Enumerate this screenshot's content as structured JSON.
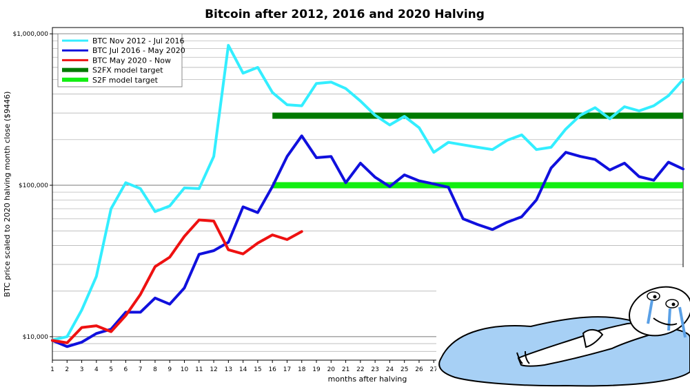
{
  "chart_data": {
    "type": "line",
    "title": "Bitcoin after 2012, 2016 and 2020 Halving",
    "xlabel": "months after halving",
    "ylabel": "BTC price scaled to 2020 halving month close ($9446)",
    "yscale": "log",
    "ylim": [
      7000,
      1100000
    ],
    "xlim": [
      1,
      44
    ],
    "y_ticks": [
      {
        "value": 10000,
        "label": "$10,000"
      },
      {
        "value": 100000,
        "label": "$100,000"
      },
      {
        "value": 1000000,
        "label": "$1,000,000"
      }
    ],
    "x_ticks": [
      "1",
      "2",
      "3",
      "4",
      "5",
      "6",
      "7",
      "8",
      "9",
      "10",
      "11",
      "12",
      "13",
      "14",
      "15",
      "16",
      "17",
      "18",
      "19",
      "20",
      "21",
      "22",
      "23",
      "24",
      "25",
      "26",
      "27"
    ],
    "grid": true,
    "legend_position": "top-left",
    "series": [
      {
        "name": "BTC Nov 2012 - Jul 2016",
        "color": "#33eeff",
        "x": [
          1,
          2,
          3,
          4,
          5,
          6,
          7,
          8,
          9,
          10,
          11,
          12,
          13,
          14,
          15,
          16,
          17,
          18,
          19,
          20,
          21,
          22,
          23,
          24,
          25,
          26,
          27,
          28,
          29,
          30,
          31,
          32,
          33,
          34,
          35,
          36,
          37,
          38,
          39,
          40,
          41,
          42,
          43,
          44
        ],
        "values": [
          9500,
          10000,
          15000,
          25000,
          70000,
          104000,
          95000,
          67000,
          73000,
          96000,
          95000,
          155000,
          840000,
          550000,
          600000,
          410000,
          340000,
          335000,
          470000,
          480000,
          435000,
          360000,
          290000,
          250000,
          285000,
          240000,
          165000,
          192000,
          185000,
          178000,
          172000,
          198000,
          215000,
          172000,
          178000,
          235000,
          290000,
          325000,
          275000,
          330000,
          310000,
          335000,
          390000,
          500000
        ]
      },
      {
        "name": "BTC Jul 2016 - May 2020",
        "color": "#1010dd",
        "x": [
          1,
          2,
          3,
          4,
          5,
          6,
          7,
          8,
          9,
          10,
          11,
          12,
          13,
          14,
          15,
          16,
          17,
          18,
          19,
          20,
          21,
          22,
          23,
          24,
          25,
          26,
          27,
          28,
          29,
          30,
          31,
          32,
          33,
          34,
          35,
          36,
          37,
          38,
          39,
          40,
          41,
          42,
          43,
          44
        ],
        "values": [
          9446,
          8600,
          9200,
          10500,
          11200,
          14500,
          14500,
          18000,
          16400,
          21000,
          35000,
          37000,
          42000,
          72000,
          66000,
          98000,
          155000,
          212000,
          152000,
          155000,
          104000,
          140000,
          113000,
          98000,
          117000,
          107000,
          102000,
          97000,
          60000,
          55000,
          51000,
          57000,
          62000,
          80000,
          130000,
          165000,
          155000,
          148000,
          126000,
          140000,
          114000,
          108000,
          142000,
          128000
        ]
      },
      {
        "name": "BTC May 2020 - Now",
        "color": "#ee1111",
        "x": [
          1,
          2,
          3,
          4,
          5,
          6,
          7,
          8,
          9,
          10,
          11,
          12,
          13,
          14,
          15,
          16,
          17,
          18
        ],
        "values": [
          9446,
          9100,
          11500,
          11800,
          10800,
          13800,
          19000,
          29000,
          33500,
          46000,
          59000,
          58000,
          37500,
          35200,
          41500,
          47000,
          43800,
          49500
        ]
      },
      {
        "name": "S2FX model target",
        "color": "#007a00",
        "x": [
          16,
          44
        ],
        "values": [
          288000,
          288000
        ]
      },
      {
        "name": "S2F model target",
        "color": "#11ee11",
        "x": [
          16,
          44
        ],
        "values": [
          100000,
          100000
        ]
      }
    ]
  }
}
